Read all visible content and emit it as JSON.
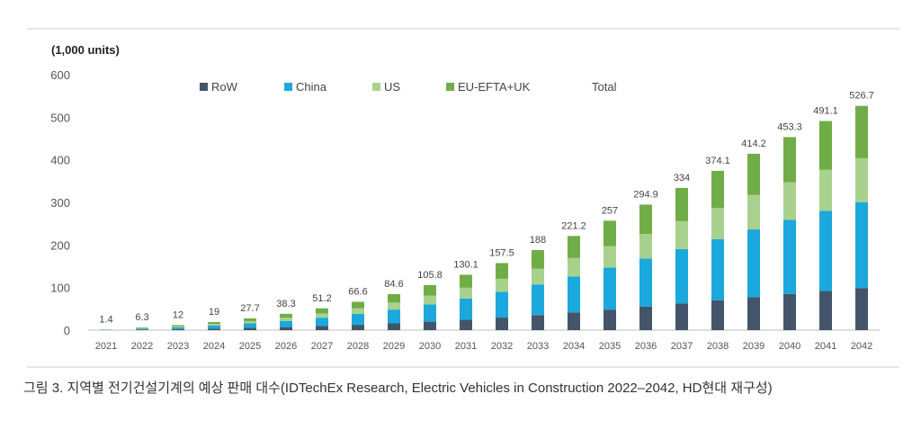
{
  "caption": "그림 3. 지역별 전기건설기계의 예상 판매 대수(IDTechEx Research, Electric Vehicles in Construction 2022–2042, HD현대 재구성)",
  "chart_data": {
    "type": "bar",
    "stacked": true,
    "unit_label": "(1,000 units)",
    "categories": [
      "2021",
      "2022",
      "2023",
      "2024",
      "2025",
      "2026",
      "2027",
      "2028",
      "2029",
      "2030",
      "2031",
      "2032",
      "2033",
      "2034",
      "2035",
      "2036",
      "2037",
      "2038",
      "2039",
      "2040",
      "2041",
      "2042"
    ],
    "series": [
      {
        "name": "RoW",
        "color": "#44546a",
        "values": [
          0.3,
          1.2,
          2.3,
          3.6,
          5.2,
          7.2,
          9.6,
          12.5,
          15.9,
          19.8,
          24.4,
          29.5,
          35.3,
          41.5,
          48.2,
          55.3,
          62.6,
          70.2,
          77.7,
          85.0,
          92.1,
          98.8
        ]
      },
      {
        "name": "China",
        "color": "#1ba8dc",
        "values": [
          0.5,
          2.4,
          4.6,
          7.3,
          10.6,
          14.6,
          19.6,
          25.5,
          32.4,
          40.5,
          49.8,
          60.3,
          72.0,
          84.7,
          98.5,
          113.0,
          128.0,
          143.4,
          158.8,
          173.8,
          188.3,
          201.9
        ]
      },
      {
        "name": "US",
        "color": "#a9d18e",
        "values": [
          0.3,
          1.3,
          2.4,
          3.8,
          5.4,
          7.5,
          10.0,
          13.1,
          16.5,
          20.6,
          25.4,
          30.8,
          36.8,
          43.2,
          50.3,
          57.6,
          65.3,
          73.2,
          81.0,
          88.6,
          96.1,
          103.0
        ]
      },
      {
        "name": "EU-EFTA+UK",
        "color": "#70ad47",
        "values": [
          0.3,
          1.4,
          2.7,
          4.3,
          6.5,
          9.0,
          12.0,
          15.5,
          19.8,
          24.9,
          30.5,
          36.9,
          43.9,
          51.8,
          60.0,
          69.0,
          78.1,
          87.3,
          96.7,
          105.9,
          114.6,
          123.0
        ]
      }
    ],
    "totals": {
      "label": "Total",
      "values": [
        1.4,
        6.3,
        12,
        19,
        27.7,
        38.3,
        51.2,
        66.6,
        84.6,
        105.8,
        130.1,
        157.5,
        188,
        221.2,
        257,
        294.9,
        334,
        374.1,
        414.2,
        453.3,
        491.1,
        526.7
      ],
      "labels": [
        "1.4",
        "6.3",
        "12",
        "19",
        "27.7",
        "38.3",
        "51.2",
        "66.6",
        "84.6",
        "105.8",
        "130.1",
        "157.5",
        "188",
        "221.2",
        "257",
        "294.9",
        "334",
        "374.1",
        "414.2",
        "453.3",
        "491.1",
        "526.7"
      ]
    },
    "ylim": [
      0,
      600
    ],
    "yticks": [
      0,
      100,
      200,
      300,
      400,
      500,
      600
    ],
    "grid": false,
    "legend_position": "top-center"
  }
}
